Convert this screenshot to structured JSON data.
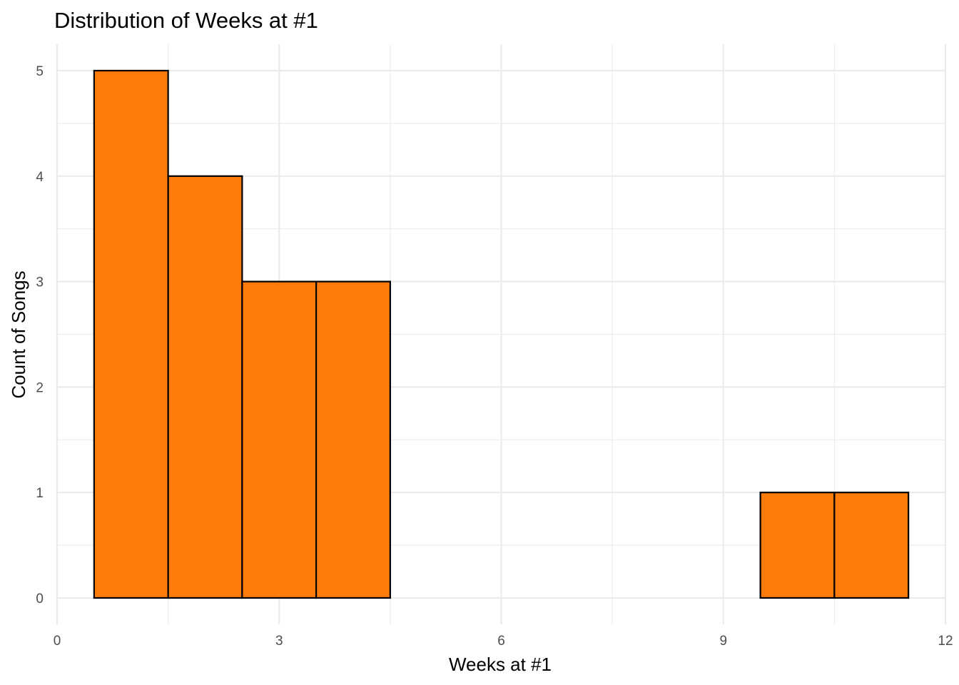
{
  "chart_data": {
    "type": "bar",
    "title": "Distribution of Weeks at #1",
    "xlabel": "Weeks at #1",
    "ylabel": "Count of Songs",
    "xlim": [
      0,
      12
    ],
    "ylim": [
      0,
      5
    ],
    "x_ticks": [
      "0",
      "3",
      "6",
      "9",
      "12"
    ],
    "x_tick_values": [
      0,
      3,
      6,
      9,
      12
    ],
    "y_ticks": [
      "0",
      "1",
      "2",
      "3",
      "4",
      "5"
    ],
    "y_tick_values": [
      0,
      1,
      2,
      3,
      4,
      5
    ],
    "bin_width": 1,
    "bins": [
      {
        "center": 1,
        "count": 5
      },
      {
        "center": 2,
        "count": 4
      },
      {
        "center": 3,
        "count": 3
      },
      {
        "center": 4,
        "count": 3
      },
      {
        "center": 5,
        "count": 0
      },
      {
        "center": 6,
        "count": 0
      },
      {
        "center": 7,
        "count": 0
      },
      {
        "center": 8,
        "count": 0
      },
      {
        "center": 9,
        "count": 0
      },
      {
        "center": 10,
        "count": 1
      },
      {
        "center": 11,
        "count": 1
      }
    ],
    "bar_fill": "#FC7B0B",
    "bar_outline": "#000000",
    "grid": true,
    "legend": "none"
  }
}
